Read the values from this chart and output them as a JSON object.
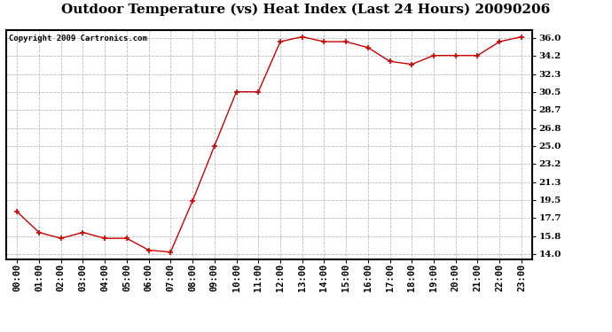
{
  "title": "Outdoor Temperature (vs) Heat Index (Last 24 Hours) 20090206",
  "copyright": "Copyright 2009 Cartronics.com",
  "x_labels": [
    "00:00",
    "01:00",
    "02:00",
    "03:00",
    "04:00",
    "05:00",
    "06:00",
    "07:00",
    "08:00",
    "09:00",
    "10:00",
    "11:00",
    "12:00",
    "13:00",
    "14:00",
    "15:00",
    "16:00",
    "17:00",
    "18:00",
    "19:00",
    "20:00",
    "21:00",
    "22:00",
    "23:00"
  ],
  "y_values": [
    18.3,
    16.2,
    15.6,
    16.2,
    15.6,
    15.6,
    14.4,
    14.2,
    19.4,
    25.0,
    30.5,
    30.5,
    35.6,
    36.1,
    35.6,
    35.6,
    35.0,
    33.6,
    33.3,
    34.2,
    34.2,
    34.2,
    35.6,
    36.1
  ],
  "line_color": "#cc0000",
  "marker_color": "#cc0000",
  "bg_color": "#ffffff",
  "plot_bg_color": "#ffffff",
  "grid_color": "#bbbbbb",
  "y_ticks": [
    14.0,
    15.8,
    17.7,
    19.5,
    21.3,
    23.2,
    25.0,
    26.8,
    28.7,
    30.5,
    32.3,
    34.2,
    36.0
  ],
  "ylim": [
    13.5,
    36.8
  ],
  "title_fontsize": 11,
  "tick_fontsize": 7.5,
  "copyright_fontsize": 6.5
}
